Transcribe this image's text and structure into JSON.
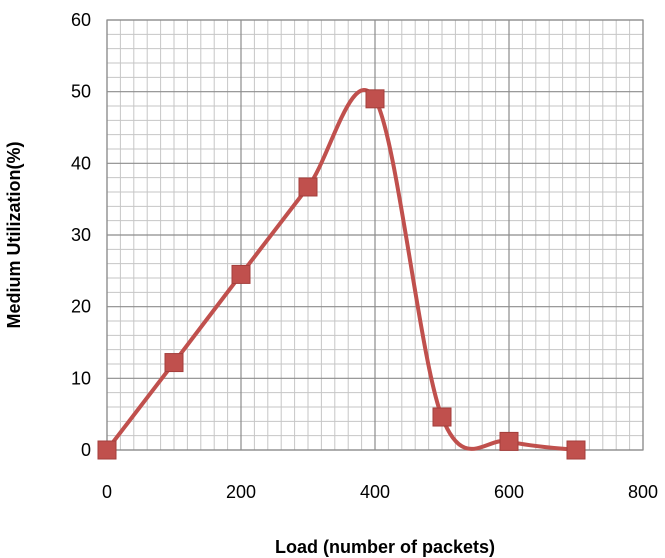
{
  "chart_data": {
    "type": "line",
    "title": "",
    "xlabel": "Load (number of packets)",
    "ylabel": "Medium Utilization(%)",
    "xlim": [
      0,
      800
    ],
    "ylim": [
      0,
      60
    ],
    "x_ticks": [
      "0",
      "200",
      "400",
      "600",
      "800"
    ],
    "y_ticks": [
      "0",
      "10",
      "20",
      "30",
      "40",
      "50",
      "60"
    ],
    "grid": true,
    "smoothed": true,
    "legend": "none",
    "series": [
      {
        "color": "#C0504D",
        "marker": "square",
        "x": [
          0,
          100,
          200,
          300,
          400,
          500,
          600,
          700
        ],
        "y": [
          0,
          12.2,
          24.5,
          36.7,
          49,
          4.6,
          1.2,
          0
        ]
      }
    ]
  }
}
